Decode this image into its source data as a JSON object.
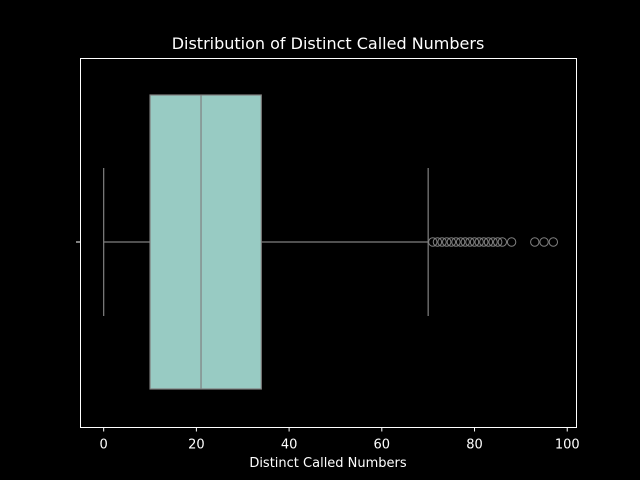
{
  "chart_data": {
    "type": "box",
    "title": "Distribution of Distinct Called Numbers",
    "xlabel": "Distinct Called Numbers",
    "ylabel": "",
    "xlim": [
      -5,
      102
    ],
    "x_ticks": [
      0,
      20,
      40,
      60,
      80,
      100
    ],
    "orientation": "horizontal",
    "grid": false,
    "box": {
      "whisker_low": 0,
      "q1": 10,
      "median": 21,
      "q3": 34,
      "whisker_high": 70,
      "outliers": [
        71,
        72,
        73,
        74,
        75,
        76,
        77,
        78,
        79,
        80,
        81,
        82,
        83,
        84,
        85,
        86,
        88,
        93,
        95,
        97
      ]
    },
    "colors": {
      "background": "#000000",
      "box_fill": "#98cbc3",
      "lines": "#808080",
      "frame": "#ffffff",
      "text": "#ffffff"
    }
  }
}
